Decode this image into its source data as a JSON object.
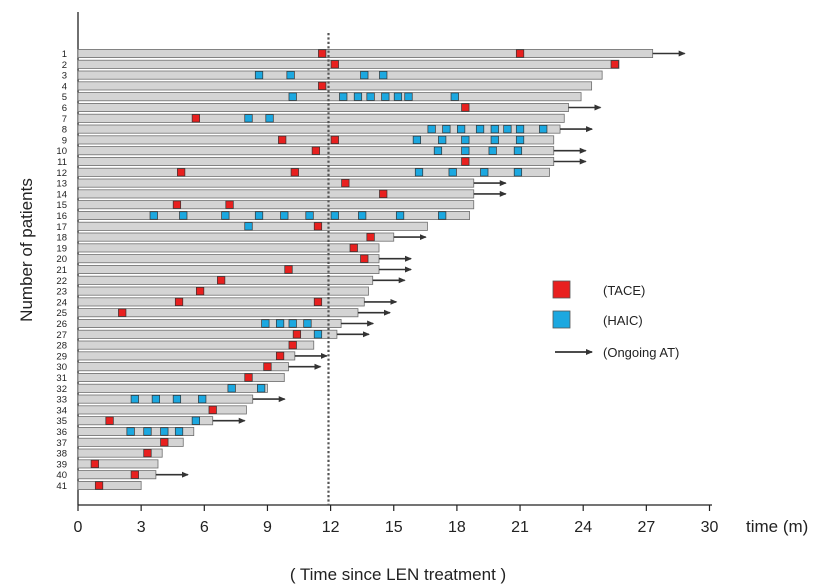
{
  "chart_data": {
    "type": "swimmer",
    "xlabel": "time (m)",
    "subtitle": "( Time since LEN treatment )",
    "ylabel": "Number of patients",
    "xlim": [
      0,
      30
    ],
    "x_ticks": [
      0,
      3,
      6,
      9,
      12,
      15,
      18,
      21,
      24,
      27,
      30
    ],
    "reference_line_x": 11.9,
    "colors": {
      "bar": "#d4d4d4",
      "tace": "#e8201f",
      "haic": "#1ca8e0",
      "arrow": "#333333"
    },
    "legend": {
      "tace": "(TACE)",
      "haic": "(HAIC)",
      "ongoing": "(Ongoing AT)",
      "placement": "right"
    },
    "patients": [
      {
        "id": "1",
        "duration": 27.3,
        "ongoing": true,
        "tace": [
          11.6,
          21.0
        ],
        "haic": []
      },
      {
        "id": "2",
        "duration": 25.7,
        "ongoing": false,
        "tace": [
          12.2,
          25.5
        ],
        "haic": []
      },
      {
        "id": "3",
        "duration": 24.9,
        "ongoing": false,
        "tace": [],
        "haic": [
          8.6,
          10.1,
          13.6,
          14.5
        ]
      },
      {
        "id": "4",
        "duration": 24.4,
        "ongoing": false,
        "tace": [
          11.6
        ],
        "haic": []
      },
      {
        "id": "5",
        "duration": 23.9,
        "ongoing": false,
        "tace": [],
        "haic": [
          10.2,
          12.6,
          13.3,
          13.9,
          14.6,
          15.2,
          15.7,
          17.9
        ]
      },
      {
        "id": "6",
        "duration": 23.3,
        "ongoing": true,
        "tace": [
          18.4
        ],
        "haic": []
      },
      {
        "id": "7",
        "duration": 23.1,
        "ongoing": false,
        "tace": [
          5.6
        ],
        "haic": [
          8.1,
          9.1
        ]
      },
      {
        "id": "8",
        "duration": 22.9,
        "ongoing": true,
        "tace": [],
        "haic": [
          16.8,
          17.5,
          18.2,
          19.1,
          19.8,
          20.4,
          21.0,
          22.1
        ]
      },
      {
        "id": "9",
        "duration": 22.6,
        "ongoing": false,
        "tace": [
          9.7,
          12.2
        ],
        "haic": [
          16.1,
          17.3,
          18.4,
          19.8,
          21.0
        ]
      },
      {
        "id": "10",
        "duration": 22.6,
        "ongoing": true,
        "tace": [
          11.3
        ],
        "haic": [
          17.1,
          18.4,
          19.7,
          20.9
        ]
      },
      {
        "id": "11",
        "duration": 22.6,
        "ongoing": true,
        "tace": [
          18.4
        ],
        "haic": []
      },
      {
        "id": "12",
        "duration": 22.4,
        "ongoing": false,
        "tace": [
          4.9,
          10.3
        ],
        "haic": [
          16.2,
          17.8,
          19.3,
          20.9
        ]
      },
      {
        "id": "13",
        "duration": 18.8,
        "ongoing": true,
        "tace": [
          12.7
        ],
        "haic": []
      },
      {
        "id": "14",
        "duration": 18.8,
        "ongoing": true,
        "tace": [
          14.5
        ],
        "haic": []
      },
      {
        "id": "15",
        "duration": 18.8,
        "ongoing": false,
        "tace": [
          4.7,
          7.2
        ],
        "haic": []
      },
      {
        "id": "16",
        "duration": 18.6,
        "ongoing": false,
        "tace": [],
        "haic": [
          3.6,
          5.0,
          7.0,
          8.6,
          9.8,
          11.0,
          12.2,
          13.5,
          15.3,
          17.3
        ]
      },
      {
        "id": "17",
        "duration": 16.6,
        "ongoing": false,
        "tace": [
          11.4
        ],
        "haic": [
          8.1
        ]
      },
      {
        "id": "18",
        "duration": 15.0,
        "ongoing": true,
        "tace": [
          13.9
        ],
        "haic": []
      },
      {
        "id": "19",
        "duration": 14.3,
        "ongoing": false,
        "tace": [
          13.1
        ],
        "haic": []
      },
      {
        "id": "20",
        "duration": 14.3,
        "ongoing": true,
        "tace": [
          13.6
        ],
        "haic": []
      },
      {
        "id": "21",
        "duration": 14.3,
        "ongoing": true,
        "tace": [
          10.0
        ],
        "haic": []
      },
      {
        "id": "22",
        "duration": 14.0,
        "ongoing": true,
        "tace": [
          6.8
        ],
        "haic": []
      },
      {
        "id": "23",
        "duration": 13.8,
        "ongoing": false,
        "tace": [
          5.8
        ],
        "haic": []
      },
      {
        "id": "24",
        "duration": 13.6,
        "ongoing": true,
        "tace": [
          4.8,
          11.4
        ],
        "haic": []
      },
      {
        "id": "25",
        "duration": 13.3,
        "ongoing": true,
        "tace": [
          2.1
        ],
        "haic": []
      },
      {
        "id": "26",
        "duration": 12.5,
        "ongoing": true,
        "tace": [],
        "haic": [
          8.9,
          9.6,
          10.2,
          10.9
        ]
      },
      {
        "id": "27",
        "duration": 12.3,
        "ongoing": true,
        "tace": [
          10.4
        ],
        "haic": [
          11.4
        ]
      },
      {
        "id": "28",
        "duration": 11.2,
        "ongoing": false,
        "tace": [
          10.2
        ],
        "haic": []
      },
      {
        "id": "29",
        "duration": 10.3,
        "ongoing": true,
        "tace": [
          9.6
        ],
        "haic": []
      },
      {
        "id": "30",
        "duration": 10.0,
        "ongoing": true,
        "tace": [
          9.0
        ],
        "haic": []
      },
      {
        "id": "31",
        "duration": 9.8,
        "ongoing": false,
        "tace": [
          8.1
        ],
        "haic": []
      },
      {
        "id": "32",
        "duration": 9.0,
        "ongoing": false,
        "tace": [],
        "haic": [
          7.3,
          8.7
        ]
      },
      {
        "id": "33",
        "duration": 8.3,
        "ongoing": true,
        "tace": [],
        "haic": [
          2.7,
          3.7,
          4.7,
          5.9
        ]
      },
      {
        "id": "34",
        "duration": 8.0,
        "ongoing": false,
        "tace": [
          6.4
        ],
        "haic": []
      },
      {
        "id": "35",
        "duration": 6.4,
        "ongoing": true,
        "tace": [
          1.5
        ],
        "haic": [
          5.6
        ]
      },
      {
        "id": "36",
        "duration": 5.5,
        "ongoing": false,
        "tace": [],
        "haic": [
          2.5,
          3.3,
          4.1,
          4.8
        ]
      },
      {
        "id": "37",
        "duration": 5.0,
        "ongoing": false,
        "tace": [
          4.1
        ],
        "haic": []
      },
      {
        "id": "38",
        "duration": 4.0,
        "ongoing": false,
        "tace": [
          3.3
        ],
        "haic": []
      },
      {
        "id": "39",
        "duration": 3.8,
        "ongoing": false,
        "tace": [
          0.8
        ],
        "haic": []
      },
      {
        "id": "40",
        "duration": 3.7,
        "ongoing": true,
        "tace": [
          2.7
        ],
        "haic": []
      },
      {
        "id": "41",
        "duration": 3.0,
        "ongoing": false,
        "tace": [
          1.0
        ],
        "haic": []
      }
    ]
  }
}
